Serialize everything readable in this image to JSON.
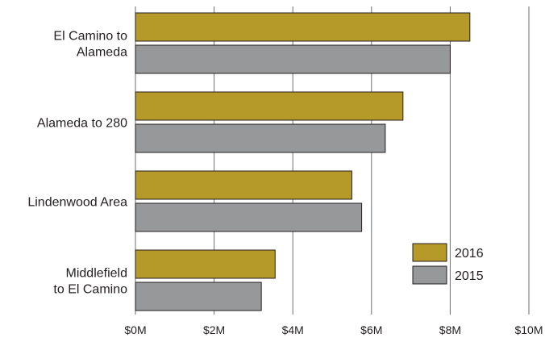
{
  "chart_data": {
    "type": "bar",
    "orientation": "horizontal",
    "categories": [
      [
        "El Camino to",
        "Alameda"
      ],
      [
        "Alameda to 280"
      ],
      [
        "Lindenwood Area"
      ],
      [
        "Middlefield",
        "to El Camino"
      ]
    ],
    "series": [
      {
        "name": "2016",
        "values": [
          8.5,
          6.8,
          5.5,
          3.55
        ],
        "color": "#b59a29"
      },
      {
        "name": "2015",
        "values": [
          8.0,
          6.35,
          5.75,
          3.2
        ],
        "color": "#97989a"
      }
    ],
    "xlim": [
      0,
      10
    ],
    "xticks": [
      0,
      2,
      4,
      6,
      8,
      10
    ],
    "xtick_labels": [
      "$0M",
      "$2M",
      "$4M",
      "$6M",
      "$8M",
      "$10M"
    ],
    "grid": "vertical",
    "legend_position": "bottom-right",
    "title": "",
    "xlabel": "",
    "ylabel": ""
  }
}
